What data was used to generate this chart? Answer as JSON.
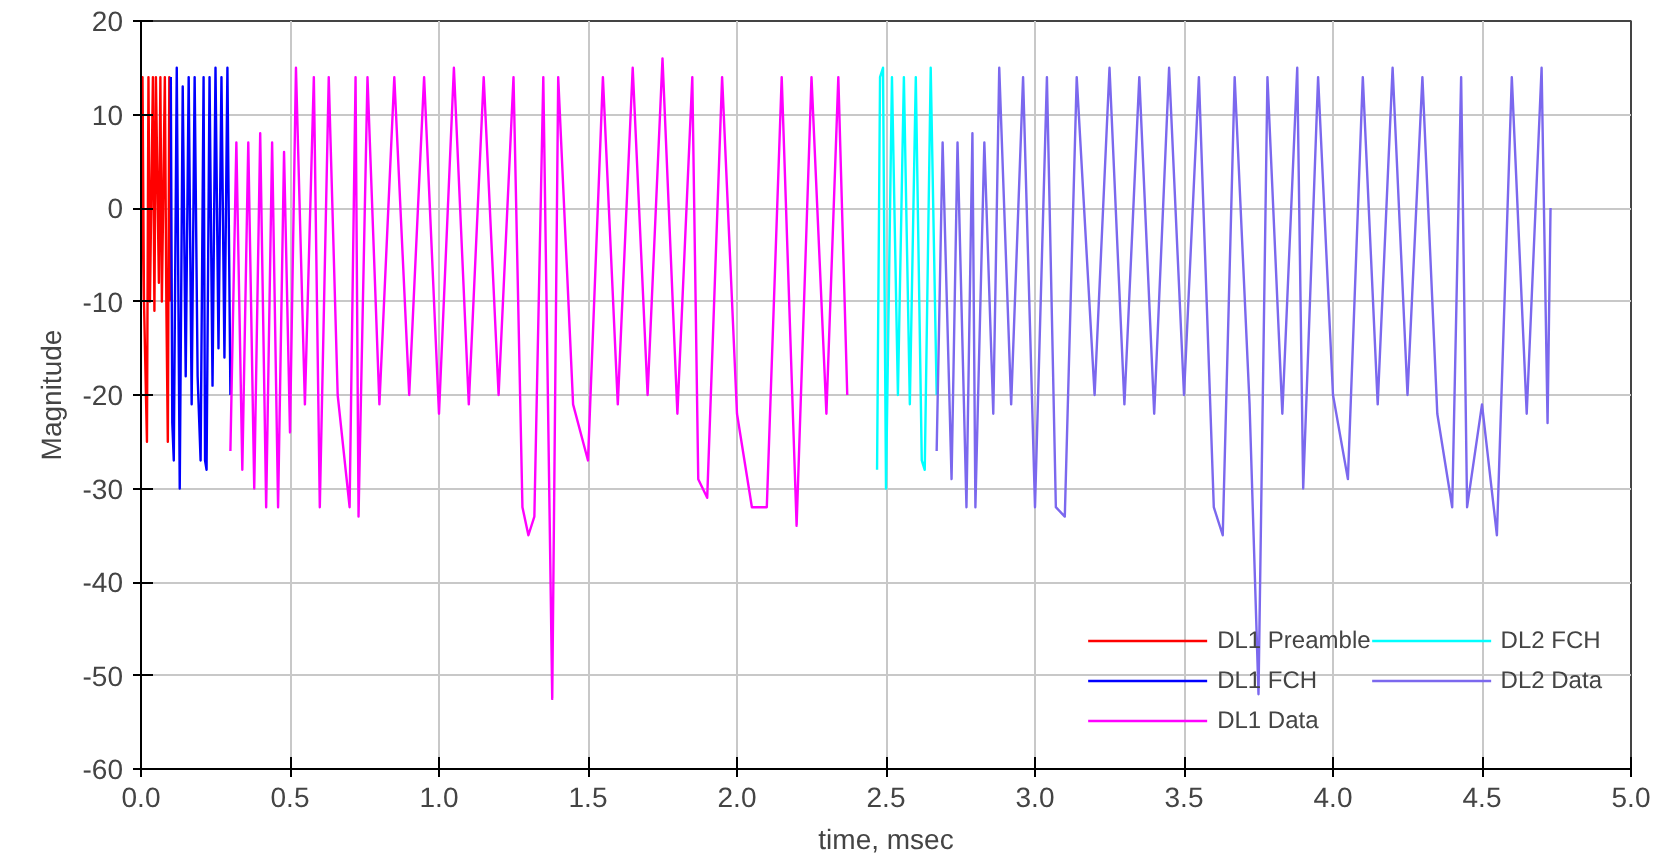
{
  "chart_data": {
    "type": "line",
    "xlabel": "time, msec",
    "ylabel": "Magnitude",
    "xlim": [
      0,
      5
    ],
    "ylim": [
      -60,
      20
    ],
    "xticks": [
      {
        "value": 0,
        "label": "0.0"
      },
      0.5,
      {
        "value": 1,
        "label": "1.0"
      },
      1.5,
      {
        "value": 2,
        "label": "2.0"
      },
      2.5,
      {
        "value": 3,
        "label": "3.0"
      },
      3.5,
      {
        "value": 4,
        "label": "4.0"
      },
      4.5,
      {
        "value": 5,
        "label": "5.0"
      }
    ],
    "yticks": [
      -60,
      -50,
      -40,
      -30,
      -20,
      -10,
      0,
      10,
      20
    ],
    "grid": true,
    "legend": "bottom right",
    "line_style": "solid",
    "marker": "none",
    "series": [
      {
        "name": "DL1 Preamble",
        "color": "#ff0000",
        "x": [
          0,
          0.005,
          0.01,
          0.02,
          0.025,
          0.03,
          0.04,
          0.045,
          0.05,
          0.06,
          0.065,
          0.07,
          0.08,
          0.085,
          0.09,
          0.095,
          0.1
        ],
        "values": [
          -10,
          14,
          -10,
          -25,
          14,
          -10,
          14,
          -11,
          14,
          -8,
          14,
          -10,
          14,
          -10,
          -25,
          14,
          -10
        ]
      },
      {
        "name": "DL1 FCH",
        "color": "#0000ff",
        "x": [
          0.1,
          0.105,
          0.11,
          0.12,
          0.13,
          0.14,
          0.15,
          0.16,
          0.17,
          0.18,
          0.19,
          0.2,
          0.21,
          0.215,
          0.22,
          0.23,
          0.24,
          0.25,
          0.26,
          0.27,
          0.28,
          0.29,
          0.3
        ],
        "values": [
          14,
          -23,
          -27,
          15,
          -30,
          13,
          -18,
          14,
          -21,
          14,
          -18,
          -27,
          14,
          -27,
          -28,
          14,
          -19,
          15,
          -15,
          14,
          -16,
          15,
          -20
        ]
      },
      {
        "name": "DL1 Data",
        "color": "#ff00ff",
        "x": [
          0.3,
          0.32,
          0.34,
          0.36,
          0.38,
          0.4,
          0.42,
          0.44,
          0.46,
          0.48,
          0.5,
          0.52,
          0.55,
          0.58,
          0.6,
          0.63,
          0.66,
          0.7,
          0.72,
          0.73,
          0.76,
          0.8,
          0.85,
          0.9,
          0.95,
          1.0,
          1.05,
          1.1,
          1.15,
          1.2,
          1.25,
          1.28,
          1.3,
          1.32,
          1.35,
          1.38,
          1.4,
          1.45,
          1.5,
          1.55,
          1.6,
          1.65,
          1.7,
          1.75,
          1.8,
          1.85,
          1.87,
          1.9,
          1.95,
          2.0,
          2.05,
          2.1,
          2.15,
          2.2,
          2.25,
          2.3,
          2.34,
          2.37
        ],
        "values": [
          -26,
          7,
          -28,
          7,
          -30,
          8,
          -32,
          7,
          -32,
          6,
          -24,
          15,
          -21,
          14,
          -32,
          14,
          -20,
          -32,
          14,
          -33,
          14,
          -21,
          14,
          -20,
          14,
          -22,
          15,
          -21,
          14,
          -20,
          14,
          -32,
          -35,
          -33,
          14,
          -52.5,
          14,
          -21,
          -27,
          14,
          -21,
          15,
          -20,
          16,
          -22,
          14,
          -29,
          -31,
          14,
          -22,
          -32,
          -32,
          14,
          -34,
          14,
          -22,
          14,
          -20
        ]
      },
      {
        "name": "DL2 FCH",
        "color": "#00ffff",
        "x": [
          2.47,
          2.48,
          2.49,
          2.5,
          2.52,
          2.54,
          2.56,
          2.58,
          2.6,
          2.62,
          2.63,
          2.65,
          2.67
        ],
        "values": [
          -28,
          14,
          15,
          -30,
          14,
          -20,
          14,
          -21,
          14,
          -27,
          -28,
          15,
          -20
        ]
      },
      {
        "name": "DL2 Data",
        "color": "#7b68ee",
        "x": [
          2.67,
          2.69,
          2.72,
          2.74,
          2.77,
          2.79,
          2.8,
          2.83,
          2.86,
          2.88,
          2.92,
          2.96,
          3.0,
          3.04,
          3.07,
          3.1,
          3.14,
          3.2,
          3.25,
          3.3,
          3.35,
          3.4,
          3.45,
          3.5,
          3.55,
          3.6,
          3.63,
          3.67,
          3.72,
          3.75,
          3.78,
          3.83,
          3.88,
          3.9,
          3.95,
          4.0,
          4.05,
          4.1,
          4.15,
          4.2,
          4.25,
          4.3,
          4.35,
          4.4,
          4.43,
          4.45,
          4.5,
          4.55,
          4.6,
          4.65,
          4.7,
          4.72,
          4.73
        ],
        "values": [
          -26,
          7,
          -29,
          7,
          -32,
          8,
          -32,
          7,
          -22,
          15,
          -21,
          14,
          -32,
          14,
          -32,
          -33,
          14,
          -20,
          15,
          -21,
          14,
          -22,
          15,
          -20,
          14,
          -32,
          -35,
          14,
          -21,
          -52,
          14,
          -22,
          15,
          -30,
          14,
          -20,
          -29,
          14,
          -21,
          15,
          -20,
          14,
          -22,
          -32,
          14,
          -32,
          -21,
          -35,
          14,
          -22,
          15,
          -23,
          0
        ]
      }
    ]
  }
}
